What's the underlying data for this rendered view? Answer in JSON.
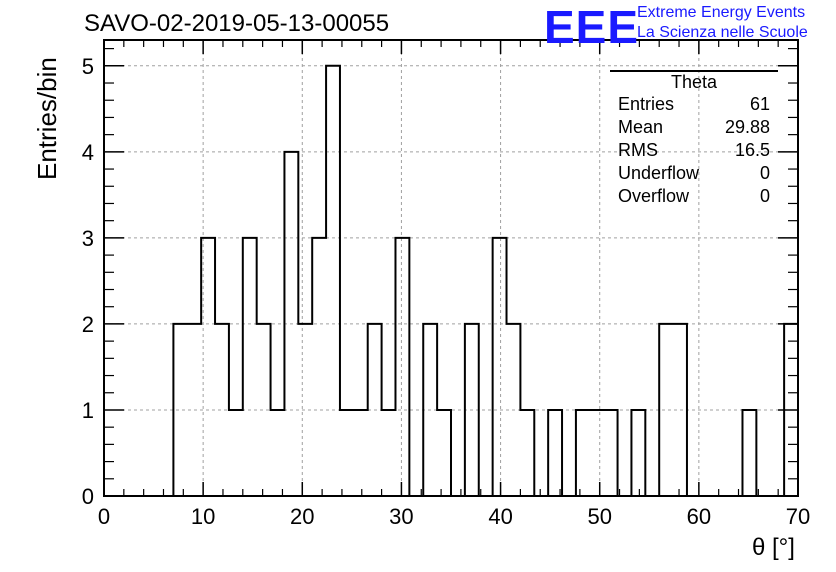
{
  "header": {
    "title": "SAVO-02-2019-05-13-00055",
    "logo_text": "EEE",
    "logo_line1": "Extreme Energy Events",
    "logo_line2": "La Scienza nelle Scuole",
    "logo_color": "#1a1aff"
  },
  "stats_box": {
    "title": "Theta",
    "rows": [
      {
        "label": "Entries",
        "value": "61"
      },
      {
        "label": "Mean",
        "value": "29.88"
      },
      {
        "label": "RMS",
        "value": "16.5"
      },
      {
        "label": "Underflow",
        "value": "0"
      },
      {
        "label": "Overflow",
        "value": "0"
      }
    ]
  },
  "chart_data": {
    "type": "histogram",
    "title": "SAVO-02-2019-05-13-00055",
    "xlabel": "θ [°]",
    "ylabel": "Entries/bin",
    "xlim": [
      0,
      70
    ],
    "ylim": [
      0,
      5.3
    ],
    "grid": true,
    "bin_width": 1.4,
    "x_ticks": [
      "0",
      "10",
      "20",
      "30",
      "40",
      "50",
      "60",
      "70"
    ],
    "y_ticks": [
      "0",
      "1",
      "2",
      "3",
      "4",
      "5"
    ],
    "bin_low_edges": [
      0,
      1.4,
      2.8,
      4.2,
      5.6,
      7.0,
      8.4,
      9.8,
      11.2,
      12.6,
      14.0,
      15.4,
      16.8,
      18.2,
      19.6,
      21.0,
      22.4,
      23.8,
      25.2,
      26.6,
      28.0,
      29.4,
      30.8,
      32.2,
      33.6,
      35.0,
      36.4,
      37.8,
      39.2,
      40.6,
      42.0,
      43.4,
      44.8,
      46.2,
      47.6,
      49.0,
      50.4,
      51.8,
      53.2,
      54.6,
      56.0,
      57.4,
      58.8,
      60.2,
      61.6,
      63.0,
      64.4,
      65.8,
      67.2,
      68.6
    ],
    "values": [
      0,
      0,
      0,
      0,
      0,
      2,
      2,
      3,
      2,
      1,
      3,
      2,
      1,
      4,
      2,
      3,
      5,
      1,
      1,
      2,
      1,
      3,
      0,
      2,
      1,
      0,
      2,
      0,
      3,
      2,
      1,
      0,
      1,
      0,
      1,
      1,
      1,
      0,
      1,
      0,
      2,
      2,
      0,
      0,
      0,
      0,
      1,
      0,
      0,
      2
    ],
    "line_color": "#000000",
    "grid_color": "#a0a0a0"
  }
}
